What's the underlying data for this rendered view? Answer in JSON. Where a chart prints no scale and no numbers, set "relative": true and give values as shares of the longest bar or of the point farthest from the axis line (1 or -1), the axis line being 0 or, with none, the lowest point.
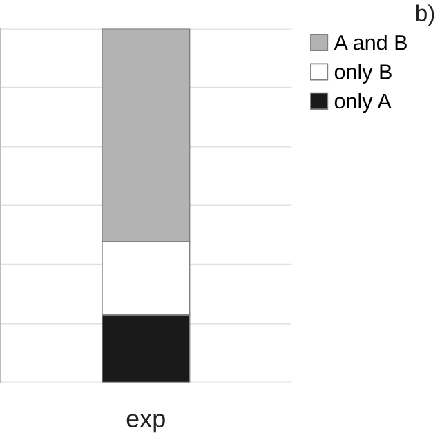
{
  "chart_data": {
    "type": "bar",
    "title": "b)",
    "categories": [
      "exp"
    ],
    "stacked": true,
    "relative": true,
    "grid": "y",
    "legend": "top right",
    "series": [
      {
        "name": "only A",
        "color": "#1a1a1a",
        "values": [
          0.191
        ]
      },
      {
        "name": "only B",
        "color": "#ffffff",
        "values": [
          0.207
        ]
      },
      {
        "name": "A and B",
        "color": "#b3b3b3",
        "values": [
          0.602
        ]
      }
    ]
  }
}
